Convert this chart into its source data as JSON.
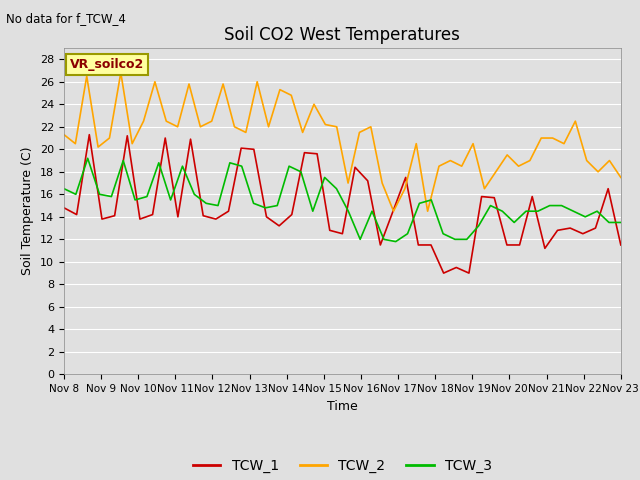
{
  "title": "Soil CO2 West Temperatures",
  "xlabel": "Time",
  "ylabel": "Soil Temperature (C)",
  "no_data_text": "No data for f_TCW_4",
  "annotation_text": "VR_soilco2",
  "ylim": [
    0,
    29
  ],
  "yticks": [
    0,
    2,
    4,
    6,
    8,
    10,
    12,
    14,
    16,
    18,
    20,
    22,
    24,
    26,
    28
  ],
  "x_labels": [
    "Nov 8",
    "Nov 9",
    "Nov 10",
    "Nov 11",
    "Nov 12",
    "Nov 13",
    "Nov 14",
    "Nov 15",
    "Nov 16",
    "Nov 17",
    "Nov 18",
    "Nov 19",
    "Nov 20",
    "Nov 21",
    "Nov 22",
    "Nov 23"
  ],
  "background_color": "#e0e0e0",
  "plot_bg_color": "#e0e0e0",
  "grid_color": "#ffffff",
  "tcw1_color": "#cc0000",
  "tcw2_color": "#ffa500",
  "tcw3_color": "#00bb00",
  "legend_labels": [
    "TCW_1",
    "TCW_2",
    "TCW_3"
  ],
  "TCW_1": [
    14.8,
    14.2,
    21.3,
    13.8,
    14.1,
    21.2,
    13.8,
    14.2,
    21.0,
    14.0,
    20.9,
    14.1,
    13.8,
    14.5,
    20.1,
    20.0,
    14.0,
    13.2,
    14.2,
    19.7,
    19.6,
    12.8,
    12.5,
    18.4,
    17.2,
    11.5,
    14.5,
    17.5,
    11.5,
    11.5,
    9.0,
    9.5,
    9.0,
    15.8,
    15.7,
    11.5,
    11.5,
    15.8,
    11.2,
    12.8,
    13.0,
    12.5,
    13.0,
    16.5,
    11.5
  ],
  "TCW_2": [
    21.3,
    20.5,
    26.5,
    20.2,
    21.0,
    26.8,
    20.5,
    22.5,
    26.0,
    22.5,
    22.0,
    25.8,
    22.0,
    22.5,
    25.8,
    22.0,
    21.5,
    26.0,
    22.0,
    25.3,
    24.8,
    21.5,
    24.0,
    22.2,
    22.0,
    17.0,
    21.5,
    22.0,
    17.0,
    14.5,
    16.5,
    20.5,
    14.5,
    18.5,
    19.0,
    18.5,
    20.5,
    16.5,
    18.0,
    19.5,
    18.5,
    19.0,
    21.0,
    21.0,
    20.5,
    22.5,
    19.0,
    18.0,
    19.0,
    17.5
  ],
  "TCW_3": [
    16.5,
    16.0,
    19.2,
    16.0,
    15.8,
    19.0,
    15.5,
    15.8,
    18.8,
    15.5,
    18.5,
    16.0,
    15.2,
    15.0,
    18.8,
    18.5,
    15.2,
    14.8,
    15.0,
    18.5,
    18.0,
    14.5,
    17.5,
    16.5,
    14.5,
    12.0,
    14.5,
    12.0,
    11.8,
    12.5,
    15.2,
    15.5,
    12.5,
    12.0,
    12.0,
    13.2,
    15.0,
    14.5,
    13.5,
    14.5,
    14.5,
    15.0,
    15.0,
    14.5,
    14.0,
    14.5,
    13.5,
    13.5
  ]
}
